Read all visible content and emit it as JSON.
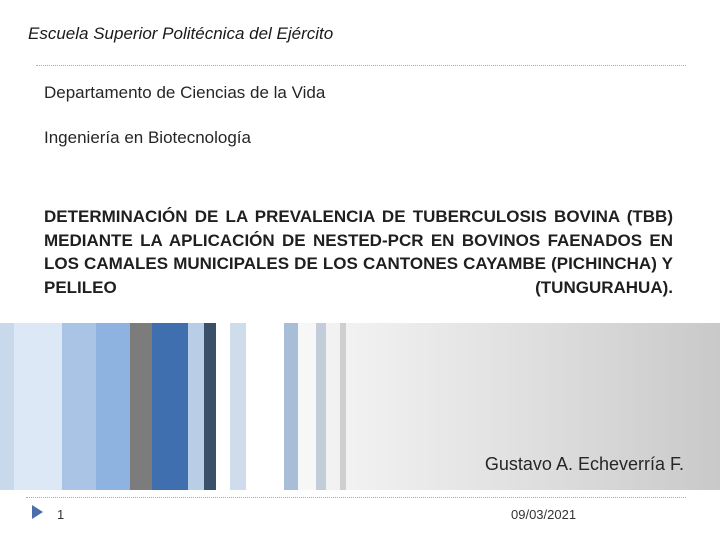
{
  "header": {
    "institution": "Escuela Superior Politécnica del Ejército"
  },
  "subtitle": {
    "department": "Departamento de Ciencias de la Vida",
    "program": "Ingeniería en Biotecnología"
  },
  "title": {
    "text": "DETERMINACIÓN DE LA PREVALENCIA DE TUBERCULOSIS BOVINA (TBB) MEDIANTE LA APLICACIÓN DE NESTED-PCR EN BOVINOS FAENADOS EN LOS CAMALES MUNICIPALES DE LOS CANTONES CAYAMBE (PICHINCHA) Y PELILEO (TUNGURAHUA)."
  },
  "author": {
    "name": "Gustavo A. Echeverría F."
  },
  "footer": {
    "slide_number": "1",
    "date": "09/03/2021"
  },
  "theme": {
    "accent": "#3f6fae",
    "marker": "#4b6fa8",
    "rule": "#9ab0c8"
  }
}
